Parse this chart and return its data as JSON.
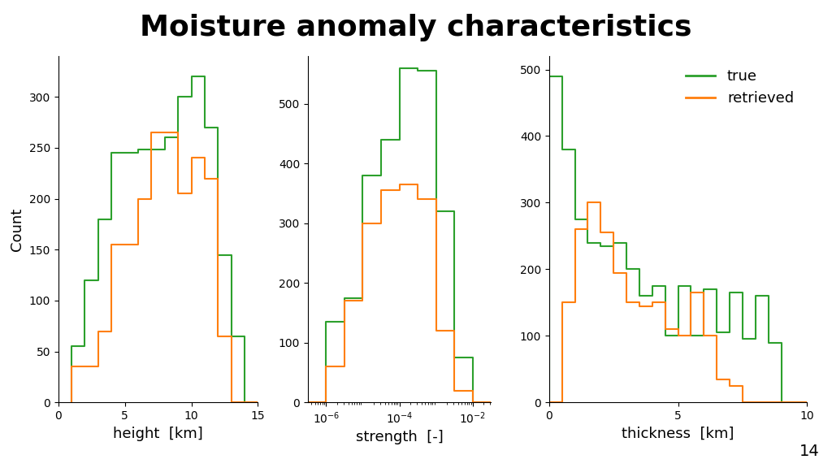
{
  "title": "Moisture anomaly characteristics",
  "title_fontsize": 26,
  "title_fontweight": "bold",
  "colors": {
    "true": "#2ca02c",
    "retrieved": "#ff7f0e"
  },
  "legend_labels": [
    "true",
    "retrieved"
  ],
  "ylabel": "Count",
  "background_color": "#ffffff",
  "footer_color": "#a8cfc8",
  "footer_text": "14",
  "height": {
    "xlabel": "height  [km]",
    "xlim": [
      0,
      15
    ],
    "ylim": [
      0,
      340
    ],
    "yticks": [
      0,
      50,
      100,
      150,
      200,
      250,
      300
    ],
    "xticks": [
      0,
      5,
      10,
      15
    ],
    "true_bins": [
      1.0,
      2.0,
      3.0,
      4.0,
      5.0,
      6.0,
      7.0,
      8.0,
      9.0,
      10.0,
      11.0,
      12.0,
      13.0,
      14.0,
      15.0
    ],
    "true_vals": [
      55,
      120,
      180,
      245,
      245,
      248,
      248,
      260,
      300,
      320,
      270,
      145,
      65,
      0
    ],
    "retr_bins": [
      1.0,
      2.0,
      3.0,
      4.0,
      5.0,
      6.0,
      7.0,
      8.0,
      9.0,
      10.0,
      11.0,
      12.0,
      13.0,
      14.0,
      15.0
    ],
    "retr_vals": [
      35,
      35,
      70,
      155,
      155,
      200,
      265,
      265,
      205,
      240,
      220,
      65,
      0,
      0
    ]
  },
  "strength": {
    "xlabel": "strength  [-]",
    "ylim": [
      0,
      580
    ],
    "yticks": [
      0,
      100,
      200,
      300,
      400,
      500
    ],
    "xlim_log": [
      -6.5,
      -1.5
    ],
    "true_bins_log": [
      -6.5,
      -6.0,
      -5.5,
      -5.0,
      -4.5,
      -4.0,
      -3.5,
      -3.0,
      -2.5,
      -2.0,
      -1.5
    ],
    "true_vals": [
      0,
      135,
      175,
      380,
      440,
      560,
      555,
      320,
      75,
      0
    ],
    "retr_bins_log": [
      -6.5,
      -6.0,
      -5.5,
      -5.0,
      -4.5,
      -4.0,
      -3.5,
      -3.0,
      -2.5,
      -2.0,
      -1.5
    ],
    "retr_vals": [
      0,
      60,
      170,
      300,
      355,
      365,
      340,
      120,
      20,
      0
    ]
  },
  "thickness": {
    "xlabel": "thickness  [km]",
    "xlim": [
      0,
      10
    ],
    "ylim": [
      0,
      520
    ],
    "yticks": [
      0,
      100,
      200,
      300,
      400,
      500
    ],
    "xticks": [
      0,
      5,
      10
    ],
    "true_bins": [
      0.0,
      0.5,
      1.0,
      1.5,
      2.0,
      2.5,
      3.0,
      3.5,
      4.0,
      4.5,
      5.0,
      5.5,
      6.0,
      6.5,
      7.0,
      7.5,
      8.0,
      8.5,
      9.0,
      9.5,
      10.0
    ],
    "true_vals": [
      490,
      380,
      275,
      240,
      235,
      240,
      200,
      160,
      175,
      100,
      175,
      100,
      170,
      105,
      165,
      95,
      160,
      90,
      0,
      0
    ],
    "retr_bins": [
      0.0,
      0.5,
      1.0,
      1.5,
      2.0,
      2.5,
      3.0,
      3.5,
      4.0,
      4.5,
      5.0,
      5.5,
      6.0,
      6.5,
      7.0,
      7.5,
      8.0,
      8.5,
      9.0,
      9.5,
      10.0
    ],
    "retr_vals": [
      0,
      150,
      260,
      300,
      255,
      195,
      150,
      145,
      150,
      110,
      100,
      165,
      100,
      35,
      25,
      0,
      0,
      0,
      0,
      0
    ]
  }
}
